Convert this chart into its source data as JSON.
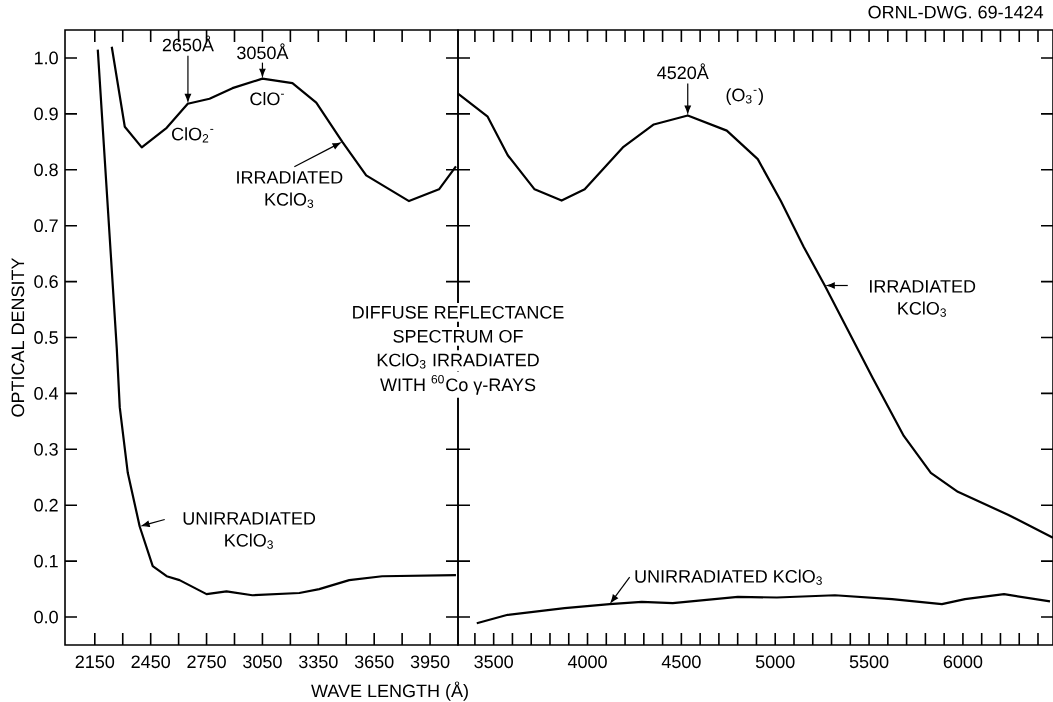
{
  "chart_data": [
    {
      "type": "line",
      "xlabel": "WAVE LENGTH (Å)",
      "ylabel": "OPTICAL DENSITY",
      "xlim": [
        1990,
        4100
      ],
      "ylim": [
        -0.05,
        1.05
      ],
      "xticks": [
        2150,
        {
          "value": 2300,
          "label": null
        },
        2450,
        {
          "value": 2600,
          "label": null
        },
        2750,
        {
          "value": 2900,
          "label": null
        },
        3050,
        {
          "value": 3200,
          "label": null
        },
        3350,
        {
          "value": 3500,
          "label": null
        },
        3650,
        {
          "value": 3800,
          "label": null
        },
        3950
      ],
      "yticks": [
        {
          "value": 0,
          "label": "0.0"
        },
        0.1,
        0.2,
        0.3,
        0.4,
        0.5,
        0.6,
        0.7,
        0.8,
        0.9,
        {
          "value": 1,
          "label": "1.0"
        }
      ],
      "series": [
        {
          "color": "#000000",
          "x": [
            2241,
            2311,
            2402,
            2536,
            2649,
            2766,
            2889,
            3050,
            3211,
            3339,
            3479,
            3607,
            3837,
            3998,
            4089
          ],
          "values": [
            1.02,
            0.877,
            0.84,
            0.875,
            0.918,
            0.927,
            0.946,
            0.963,
            0.955,
            0.92,
            0.85,
            0.79,
            0.744,
            0.765,
            0.806
          ]
        },
        {
          "color": "#000000",
          "x": [
            2166,
            2268,
            2284,
            2327,
            2391,
            2461,
            2536,
            2605,
            2750,
            2857,
            2996,
            3248,
            3355,
            3516,
            3693,
            4089
          ],
          "values": [
            1.015,
            0.48,
            0.375,
            0.258,
            0.162,
            0.091,
            0.073,
            0.066,
            0.041,
            0.046,
            0.039,
            0.043,
            0.05,
            0.066,
            0.073,
            0.075
          ]
        }
      ],
      "annotations": [
        {
          "text": "2650Å",
          "x": 2650,
          "y": 0.918
        },
        {
          "text": "3050Å",
          "x": 3050,
          "y": 0.963
        },
        {
          "text": "ClO$_{2}$$^{-}$",
          "x": 2650,
          "y": 0.918
        },
        {
          "text": "ClO$^{-}$",
          "x": 3050,
          "y": 0.963
        },
        {
          "text": "IRRADIATED KClO$_{3}$",
          "x": 3479,
          "y": 0.85
        },
        {
          "text": "UNIRRADIATED KClO$_{3}$",
          "x": 2391,
          "y": 0.162
        }
      ]
    },
    {
      "type": "line",
      "tick_labels": "x",
      "xlim": [
        3310,
        6480
      ],
      "ylim": [
        -0.05,
        1.05
      ],
      "xticks": [
        {
          "value": 3400,
          "label": null
        },
        3500,
        {
          "value": 3600,
          "label": null
        },
        {
          "value": 3700,
          "label": null
        },
        {
          "value": 3800,
          "label": null
        },
        {
          "value": 3900,
          "label": null
        },
        4000,
        {
          "value": 4100,
          "label": null
        },
        {
          "value": 4200,
          "label": null
        },
        {
          "value": 4300,
          "label": null
        },
        {
          "value": 4400,
          "label": null
        },
        4500,
        {
          "value": 4600,
          "label": null
        },
        {
          "value": 4700,
          "label": null
        },
        {
          "value": 4800,
          "label": null
        },
        {
          "value": 4900,
          "label": null
        },
        5000,
        {
          "value": 5100,
          "label": null
        },
        {
          "value": 5200,
          "label": null
        },
        {
          "value": 5300,
          "label": null
        },
        {
          "value": 5400,
          "label": null
        },
        5500,
        {
          "value": 5600,
          "label": null
        },
        {
          "value": 5700,
          "label": null
        },
        {
          "value": 5800,
          "label": null
        },
        {
          "value": 5900,
          "label": null
        },
        6000,
        {
          "value": 6100,
          "label": null
        },
        {
          "value": 6200,
          "label": null
        },
        {
          "value": 6300,
          "label": null
        },
        {
          "value": 6400,
          "label": null
        }
      ],
      "yticks": [
        {
          "value": 0,
          "label": null
        },
        {
          "value": 0.1,
          "label": null
        },
        {
          "value": 0.2,
          "label": null
        },
        {
          "value": 0.3,
          "label": null
        },
        {
          "value": 0.4,
          "label": null
        },
        {
          "value": 0.5,
          "label": null
        },
        {
          "value": 0.6,
          "label": null
        },
        {
          "value": 0.7,
          "label": null
        },
        {
          "value": 0.8,
          "label": null
        },
        {
          "value": 0.9,
          "label": null
        },
        {
          "value": 1,
          "label": null
        }
      ],
      "series": [
        {
          "color": "#000000",
          "x": [
            3310,
            3468,
            3575,
            3718,
            3862,
            3985,
            4188,
            4353,
            4534,
            4742,
            4907,
            5030,
            5152,
            5264,
            5520,
            5685,
            5829,
            5973,
            6240,
            6480
          ],
          "values": [
            0.936,
            0.895,
            0.826,
            0.765,
            0.745,
            0.765,
            0.84,
            0.881,
            0.897,
            0.87,
            0.819,
            0.744,
            0.662,
            0.593,
            0.427,
            0.324,
            0.258,
            0.224,
            0.183,
            0.142
          ]
        },
        {
          "color": "#000000",
          "x": [
            3410,
            3575,
            3878,
            4118,
            4289,
            4454,
            4801,
            5009,
            5318,
            5622,
            5888,
            6011,
            6219,
            6464
          ],
          "values": [
            -0.011,
            0.004,
            0.016,
            0.023,
            0.027,
            0.025,
            0.036,
            0.035,
            0.039,
            0.032,
            0.023,
            0.032,
            0.041,
            0.028
          ]
        }
      ],
      "annotations": [
        {
          "text": "4520Å",
          "x": 4534,
          "y": 0.897
        },
        {
          "text": "(O$_{3}$$^{-}$)",
          "x": 4534,
          "y": 0.897
        },
        {
          "text": "IRRADIATED KClO$_{3}$",
          "x": 5264,
          "y": 0.593
        },
        {
          "text": "UNIRRADIATED KClO$_{3}$",
          "x": 4118,
          "y": 0.023
        },
        "DIFFUSE REFLECTANCE",
        "SPECTRUM OF",
        "KClO$_{3}$ IRRADIATED",
        "WITH $^{60}$Co γ-RAYS",
        "ORNL-DWG. 69-1424"
      ]
    }
  ]
}
